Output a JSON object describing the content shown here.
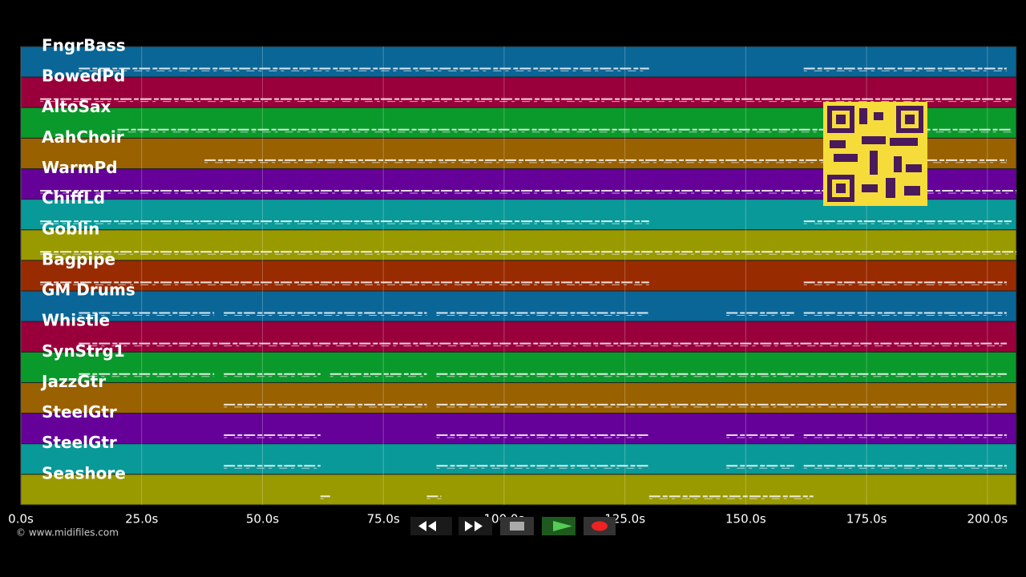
{
  "chart_data": {
    "type": "piano-roll",
    "tracks": [
      {
        "name": "FngrBass",
        "color": "#0a6697",
        "spans": [
          [
            12,
            130
          ],
          [
            162,
            204
          ]
        ]
      },
      {
        "name": "BowedPd",
        "color": "#99003b",
        "spans": [
          [
            4,
            205
          ]
        ]
      },
      {
        "name": "AltoSax",
        "color": "#0a9a2b",
        "spans": [
          [
            20,
            205
          ]
        ]
      },
      {
        "name": "AahChoir",
        "color": "#996100",
        "spans": [
          [
            38,
            204
          ]
        ]
      },
      {
        "name": "WarmPd",
        "color": "#650099",
        "spans": [
          [
            4,
            206
          ]
        ]
      },
      {
        "name": "ChiffLd",
        "color": "#0a9999",
        "spans": [
          [
            4,
            130
          ],
          [
            162,
            205
          ]
        ]
      },
      {
        "name": "Goblin",
        "color": "#999900",
        "spans": [
          [
            4,
            206
          ]
        ]
      },
      {
        "name": "Bagpipe",
        "color": "#992b00",
        "spans": [
          [
            4,
            130
          ],
          [
            162,
            204
          ]
        ]
      },
      {
        "name": "GM Drums",
        "color": "#0a6697",
        "spans": [
          [
            12,
            40
          ],
          [
            42,
            84
          ],
          [
            86,
            130
          ],
          [
            146,
            160
          ],
          [
            162,
            204
          ]
        ]
      },
      {
        "name": "Whistle",
        "color": "#99003b",
        "spans": [
          [
            12,
            204
          ]
        ]
      },
      {
        "name": "SynStrg1",
        "color": "#0a9a2b",
        "spans": [
          [
            12,
            40
          ],
          [
            42,
            62
          ],
          [
            64,
            84
          ],
          [
            86,
            204
          ]
        ]
      },
      {
        "name": "JazzGtr",
        "color": "#996100",
        "spans": [
          [
            42,
            84
          ],
          [
            86,
            204
          ]
        ]
      },
      {
        "name": "SteelGtr",
        "color": "#650099",
        "spans": [
          [
            42,
            62
          ],
          [
            86,
            130
          ],
          [
            146,
            160
          ],
          [
            162,
            204
          ]
        ]
      },
      {
        "name": "SteelGtr",
        "color": "#0a9999",
        "spans": [
          [
            42,
            62
          ],
          [
            86,
            130
          ],
          [
            146,
            160
          ],
          [
            162,
            204
          ]
        ]
      },
      {
        "name": "Seashore",
        "color": "#999900",
        "spans": [
          [
            62,
            64
          ],
          [
            84,
            87
          ],
          [
            130,
            164
          ]
        ]
      }
    ],
    "xlim": [
      0,
      206
    ],
    "xticks": [
      {
        "value": 0,
        "label": "0.0s"
      },
      {
        "value": 25,
        "label": "25.0s"
      },
      {
        "value": 50,
        "label": "50.0s"
      },
      {
        "value": 75,
        "label": "75.0s"
      },
      {
        "value": 100,
        "label": "100.0s"
      },
      {
        "value": 125,
        "label": "125.0s"
      },
      {
        "value": 150,
        "label": "150.0s"
      },
      {
        "value": 175,
        "label": "175.0s"
      },
      {
        "value": 200,
        "label": "200.0s"
      }
    ],
    "grid": true,
    "footer": "© www.midifiles.com"
  }
}
